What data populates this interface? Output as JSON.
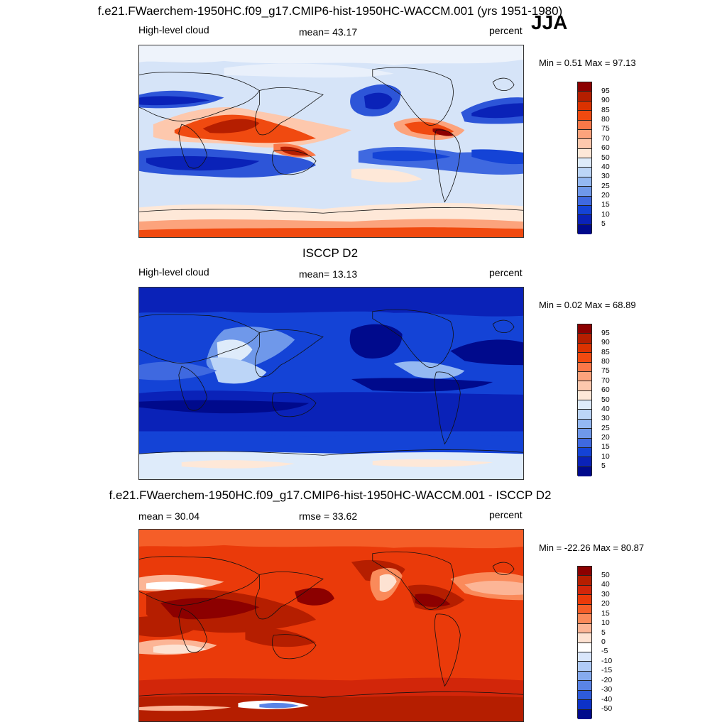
{
  "season": "JJA",
  "panels": [
    {
      "title": "f.e21.FWaerchem-1950HC.f09_g17.CMIP6-hist-1950HC-WACCM.001 (yrs 1951-1980)",
      "left_label": "High-level cloud",
      "center_label": "mean=  43.17",
      "right_label": "percent",
      "minmax": "Min =   0.51 Max =  97.13",
      "levels": [
        "95",
        "90",
        "85",
        "80",
        "75",
        "70",
        "60",
        "50",
        "40",
        "30",
        "25",
        "20",
        "15",
        "10",
        "5"
      ]
    },
    {
      "title": "ISCCP D2",
      "left_label": "High-level cloud",
      "center_label": "mean=  13.13",
      "right_label": "percent",
      "minmax": "Min =   0.02 Max =  68.89",
      "levels": [
        "95",
        "90",
        "85",
        "80",
        "75",
        "70",
        "60",
        "50",
        "40",
        "30",
        "25",
        "20",
        "15",
        "10",
        "5"
      ]
    },
    {
      "title": "f.e21.FWaerchem-1950HC.f09_g17.CMIP6-hist-1950HC-WACCM.001 - ISCCP D2",
      "left_label": "mean =  30.04",
      "center_label": "rmse =  33.62",
      "right_label": "percent",
      "minmax": "Min = -22.26 Max =  80.87",
      "levels": [
        "50",
        "40",
        "30",
        "20",
        "15",
        "10",
        "5",
        "0",
        "-5",
        "-10",
        "-15",
        "-20",
        "-30",
        "-40",
        "-50"
      ]
    }
  ],
  "colors": {
    "abs_scale": [
      "#8c0000",
      "#b51e00",
      "#db3200",
      "#f04a10",
      "#fa7848",
      "#fca37c",
      "#fdc8ad",
      "#fee8d8",
      "#deebfa",
      "#bcd5f7",
      "#94b8f2",
      "#6f98ea",
      "#3f69e0",
      "#1443d6",
      "#0a22b8",
      "#000a8c"
    ],
    "diff_scale": [
      "#8c0000",
      "#b51e00",
      "#d2260a",
      "#ea3a0a",
      "#f55e28",
      "#fa8a5a",
      "#fcb596",
      "#fde2d2",
      "#ffffff",
      "#d9e6fb",
      "#b0cbf6",
      "#86abef",
      "#5a84e6",
      "#2e5bdb",
      "#0d32c8",
      "#000a8c"
    ]
  }
}
